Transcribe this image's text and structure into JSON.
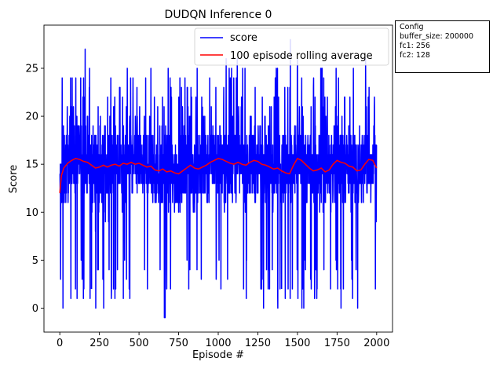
{
  "chart_data": {
    "type": "line",
    "title": "DUDQN Inference 0",
    "xlabel": "Episode #",
    "ylabel": "Score",
    "xlim": [
      -100,
      2100
    ],
    "ylim": [
      -2.5,
      29.5
    ],
    "xticks": [
      0,
      250,
      500,
      750,
      1000,
      1250,
      1500,
      1750,
      2000
    ],
    "yticks": [
      0,
      5,
      10,
      15,
      20,
      25
    ],
    "legend_position": "top-right",
    "legend": [
      "score",
      "100 episode rolling average"
    ],
    "series": [
      {
        "name": "score",
        "color": "#0000ff",
        "x_start": 0,
        "x_end": 2000,
        "n_points": 2001,
        "mean": 14.9,
        "max": 28,
        "min": -1,
        "notable_points": [
          {
            "x": 5,
            "y": 3
          },
          {
            "x": 15,
            "y": 24
          },
          {
            "x": 20,
            "y": 0
          },
          {
            "x": 160,
            "y": 27
          },
          {
            "x": 660,
            "y": -1
          },
          {
            "x": 665,
            "y": -1
          },
          {
            "x": 1050,
            "y": 26
          },
          {
            "x": 1120,
            "y": 26
          },
          {
            "x": 1455,
            "y": 28
          },
          {
            "x": 1500,
            "y": 26
          },
          {
            "x": 1930,
            "y": 26
          }
        ]
      },
      {
        "name": "100 episode rolling average",
        "color": "#ff0000",
        "x": [
          0,
          10,
          25,
          50,
          75,
          100,
          125,
          150,
          175,
          200,
          225,
          250,
          275,
          300,
          325,
          350,
          375,
          400,
          425,
          450,
          475,
          500,
          525,
          550,
          575,
          600,
          625,
          650,
          675,
          700,
          725,
          750,
          775,
          800,
          825,
          850,
          875,
          900,
          925,
          950,
          975,
          1000,
          1025,
          1050,
          1075,
          1100,
          1125,
          1150,
          1175,
          1200,
          1225,
          1250,
          1275,
          1300,
          1325,
          1350,
          1375,
          1400,
          1425,
          1450,
          1475,
          1500,
          1525,
          1550,
          1575,
          1600,
          1625,
          1650,
          1675,
          1700,
          1725,
          1750,
          1775,
          1800,
          1825,
          1850,
          1875,
          1900,
          1925,
          1950,
          1975,
          2000
        ],
        "values": [
          12.0,
          13.8,
          14.6,
          15.1,
          15.4,
          15.6,
          15.5,
          15.3,
          15.2,
          14.9,
          14.6,
          14.7,
          14.9,
          14.7,
          14.9,
          15.0,
          14.8,
          15.1,
          15.0,
          15.2,
          15.0,
          15.1,
          14.9,
          14.7,
          14.8,
          14.4,
          14.3,
          14.5,
          14.2,
          14.3,
          14.1,
          14.0,
          14.3,
          14.6,
          14.9,
          14.6,
          14.5,
          14.7,
          14.9,
          15.2,
          15.4,
          15.6,
          15.5,
          15.3,
          15.1,
          15.0,
          15.2,
          15.0,
          14.9,
          15.2,
          15.4,
          15.3,
          15.0,
          14.9,
          14.7,
          14.5,
          14.6,
          14.3,
          14.1,
          14.0,
          14.9,
          15.6,
          15.4,
          15.0,
          14.6,
          14.3,
          14.4,
          14.6,
          14.2,
          14.4,
          15.0,
          15.4,
          15.2,
          15.1,
          14.8,
          14.7,
          14.3,
          14.4,
          15.0,
          15.5,
          15.4,
          14.6
        ]
      }
    ]
  },
  "config_box": {
    "lines": [
      "Config",
      "buffer_size: 200000",
      "fc1: 256",
      "fc2: 128"
    ]
  }
}
